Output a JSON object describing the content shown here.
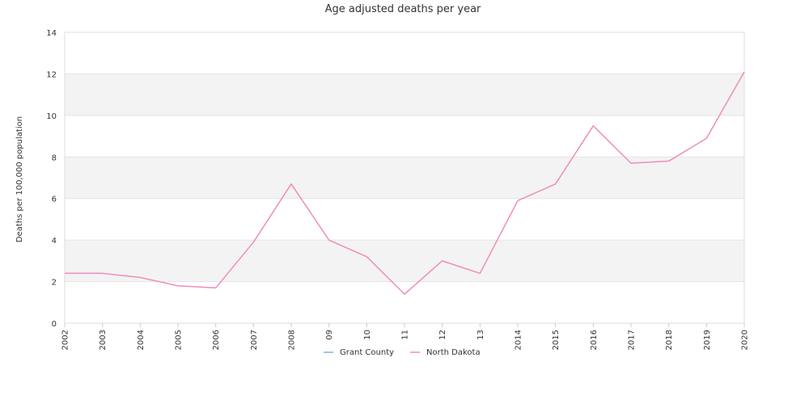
{
  "chart_data": {
    "type": "line",
    "title": "Age adjusted deaths per year",
    "xlabel": "",
    "ylabel": "Deaths per 100,000 population",
    "categories": [
      "2002",
      "2003",
      "2004",
      "2005",
      "2006",
      "2007",
      "2008",
      "09",
      "10",
      "11",
      "12",
      "13",
      "2014",
      "2015",
      "2016",
      "2017",
      "2018",
      "2019",
      "2020"
    ],
    "ylim": [
      0,
      14
    ],
    "yticks": [
      0,
      2,
      4,
      6,
      8,
      10,
      12,
      14
    ],
    "grid": "alternating-bands",
    "legend_position": "bottom",
    "series": [
      {
        "name": "Grant County",
        "color": "#7fb2e5",
        "values": [
          null,
          null,
          null,
          null,
          null,
          null,
          null,
          null,
          null,
          null,
          null,
          null,
          null,
          null,
          null,
          null,
          null,
          null,
          null
        ]
      },
      {
        "name": "North Dakota",
        "color": "#f08cbe",
        "values": [
          2.4,
          2.4,
          2.2,
          1.8,
          1.7,
          3.9,
          6.7,
          4.0,
          3.2,
          1.4,
          3.0,
          2.4,
          5.9,
          6.7,
          9.5,
          7.7,
          7.8,
          8.9,
          12.1
        ]
      }
    ]
  }
}
